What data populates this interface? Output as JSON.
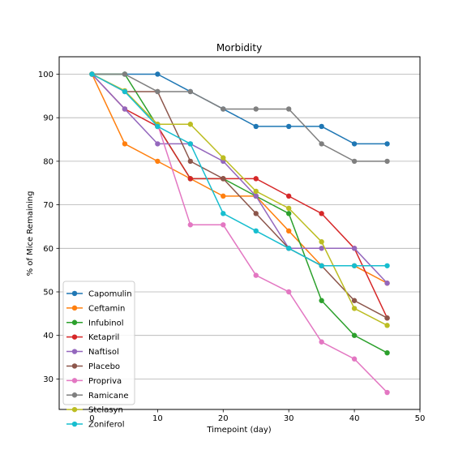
{
  "chart_data": {
    "type": "line",
    "title": "Morbidity",
    "xlabel": "Timepoint (day)",
    "ylabel": "% of Mice Remaining",
    "xlim": [
      -5,
      50
    ],
    "ylim": [
      23,
      104
    ],
    "xticks": [
      0,
      10,
      20,
      30,
      40,
      50
    ],
    "yticks": [
      30,
      40,
      50,
      60,
      70,
      80,
      90,
      100
    ],
    "grid": "horizontal",
    "legend_position": "lower-left",
    "x": [
      0,
      5,
      10,
      15,
      20,
      25,
      30,
      35,
      40,
      45
    ],
    "series": [
      {
        "name": "Capomulin",
        "color": "#1f77b4",
        "values": [
          100,
          100,
          100,
          96,
          92,
          88,
          88,
          88,
          84,
          84
        ]
      },
      {
        "name": "Ceftamin",
        "color": "#ff7f0e",
        "values": [
          100,
          84,
          80,
          76,
          72,
          72,
          64,
          56,
          56,
          52
        ]
      },
      {
        "name": "Infubinol",
        "color": "#2ca02c",
        "values": [
          100,
          100,
          88,
          76,
          76,
          72,
          68,
          48,
          40,
          36
        ]
      },
      {
        "name": "Ketapril",
        "color": "#d62728",
        "values": [
          100,
          92,
          88,
          76,
          76,
          76,
          72,
          68,
          60,
          44
        ]
      },
      {
        "name": "Naftisol",
        "color": "#9467bd",
        "values": [
          100,
          92,
          84,
          84,
          80,
          72,
          60,
          60,
          60,
          52
        ]
      },
      {
        "name": "Placebo",
        "color": "#8c564b",
        "values": [
          100,
          96,
          96,
          80,
          76,
          68,
          60,
          56,
          48,
          44
        ]
      },
      {
        "name": "Propriva",
        "color": "#e377c2",
        "values": [
          100,
          96,
          88.5,
          65.4,
          65.4,
          53.8,
          50,
          38.5,
          34.6,
          26.9
        ]
      },
      {
        "name": "Ramicane",
        "color": "#7f7f7f",
        "values": [
          100,
          100,
          96,
          96,
          92,
          92,
          92,
          84,
          80,
          80
        ]
      },
      {
        "name": "Stelasyn",
        "color": "#bcbd22",
        "values": [
          100,
          96.2,
          88.5,
          88.5,
          80.8,
          73.1,
          69.2,
          61.5,
          46.2,
          42.3
        ]
      },
      {
        "name": "Zoniferol",
        "color": "#17becf",
        "values": [
          100,
          96,
          88,
          84,
          68,
          64,
          60,
          56,
          56,
          56
        ]
      }
    ]
  }
}
